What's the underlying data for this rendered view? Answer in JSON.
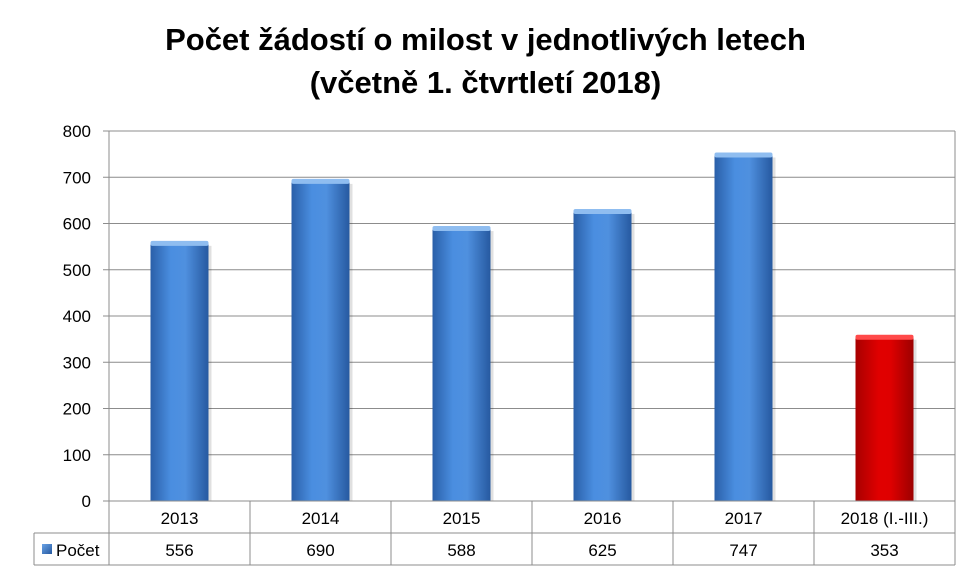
{
  "chart_data": {
    "type": "bar",
    "title": "Počet žádostí o milost v jednotlivých letech",
    "subtitle": "(včetně 1. čtvrtletí 2018)",
    "categories": [
      "2013",
      "2014",
      "2015",
      "2016",
      "2017",
      "2018 (I.-III.)"
    ],
    "series": [
      {
        "name": "Počet",
        "values": [
          556,
          690,
          588,
          625,
          747,
          353
        ]
      }
    ],
    "ylim": [
      0,
      800
    ],
    "yticks": [
      0,
      100,
      200,
      300,
      400,
      500,
      600,
      700,
      800
    ],
    "grid": true,
    "legend": "data-table",
    "colors": {
      "bar": "#3f7fd0",
      "highlight": "#d60000",
      "grid": "#8c8c8c"
    },
    "highlight_index": 5
  }
}
